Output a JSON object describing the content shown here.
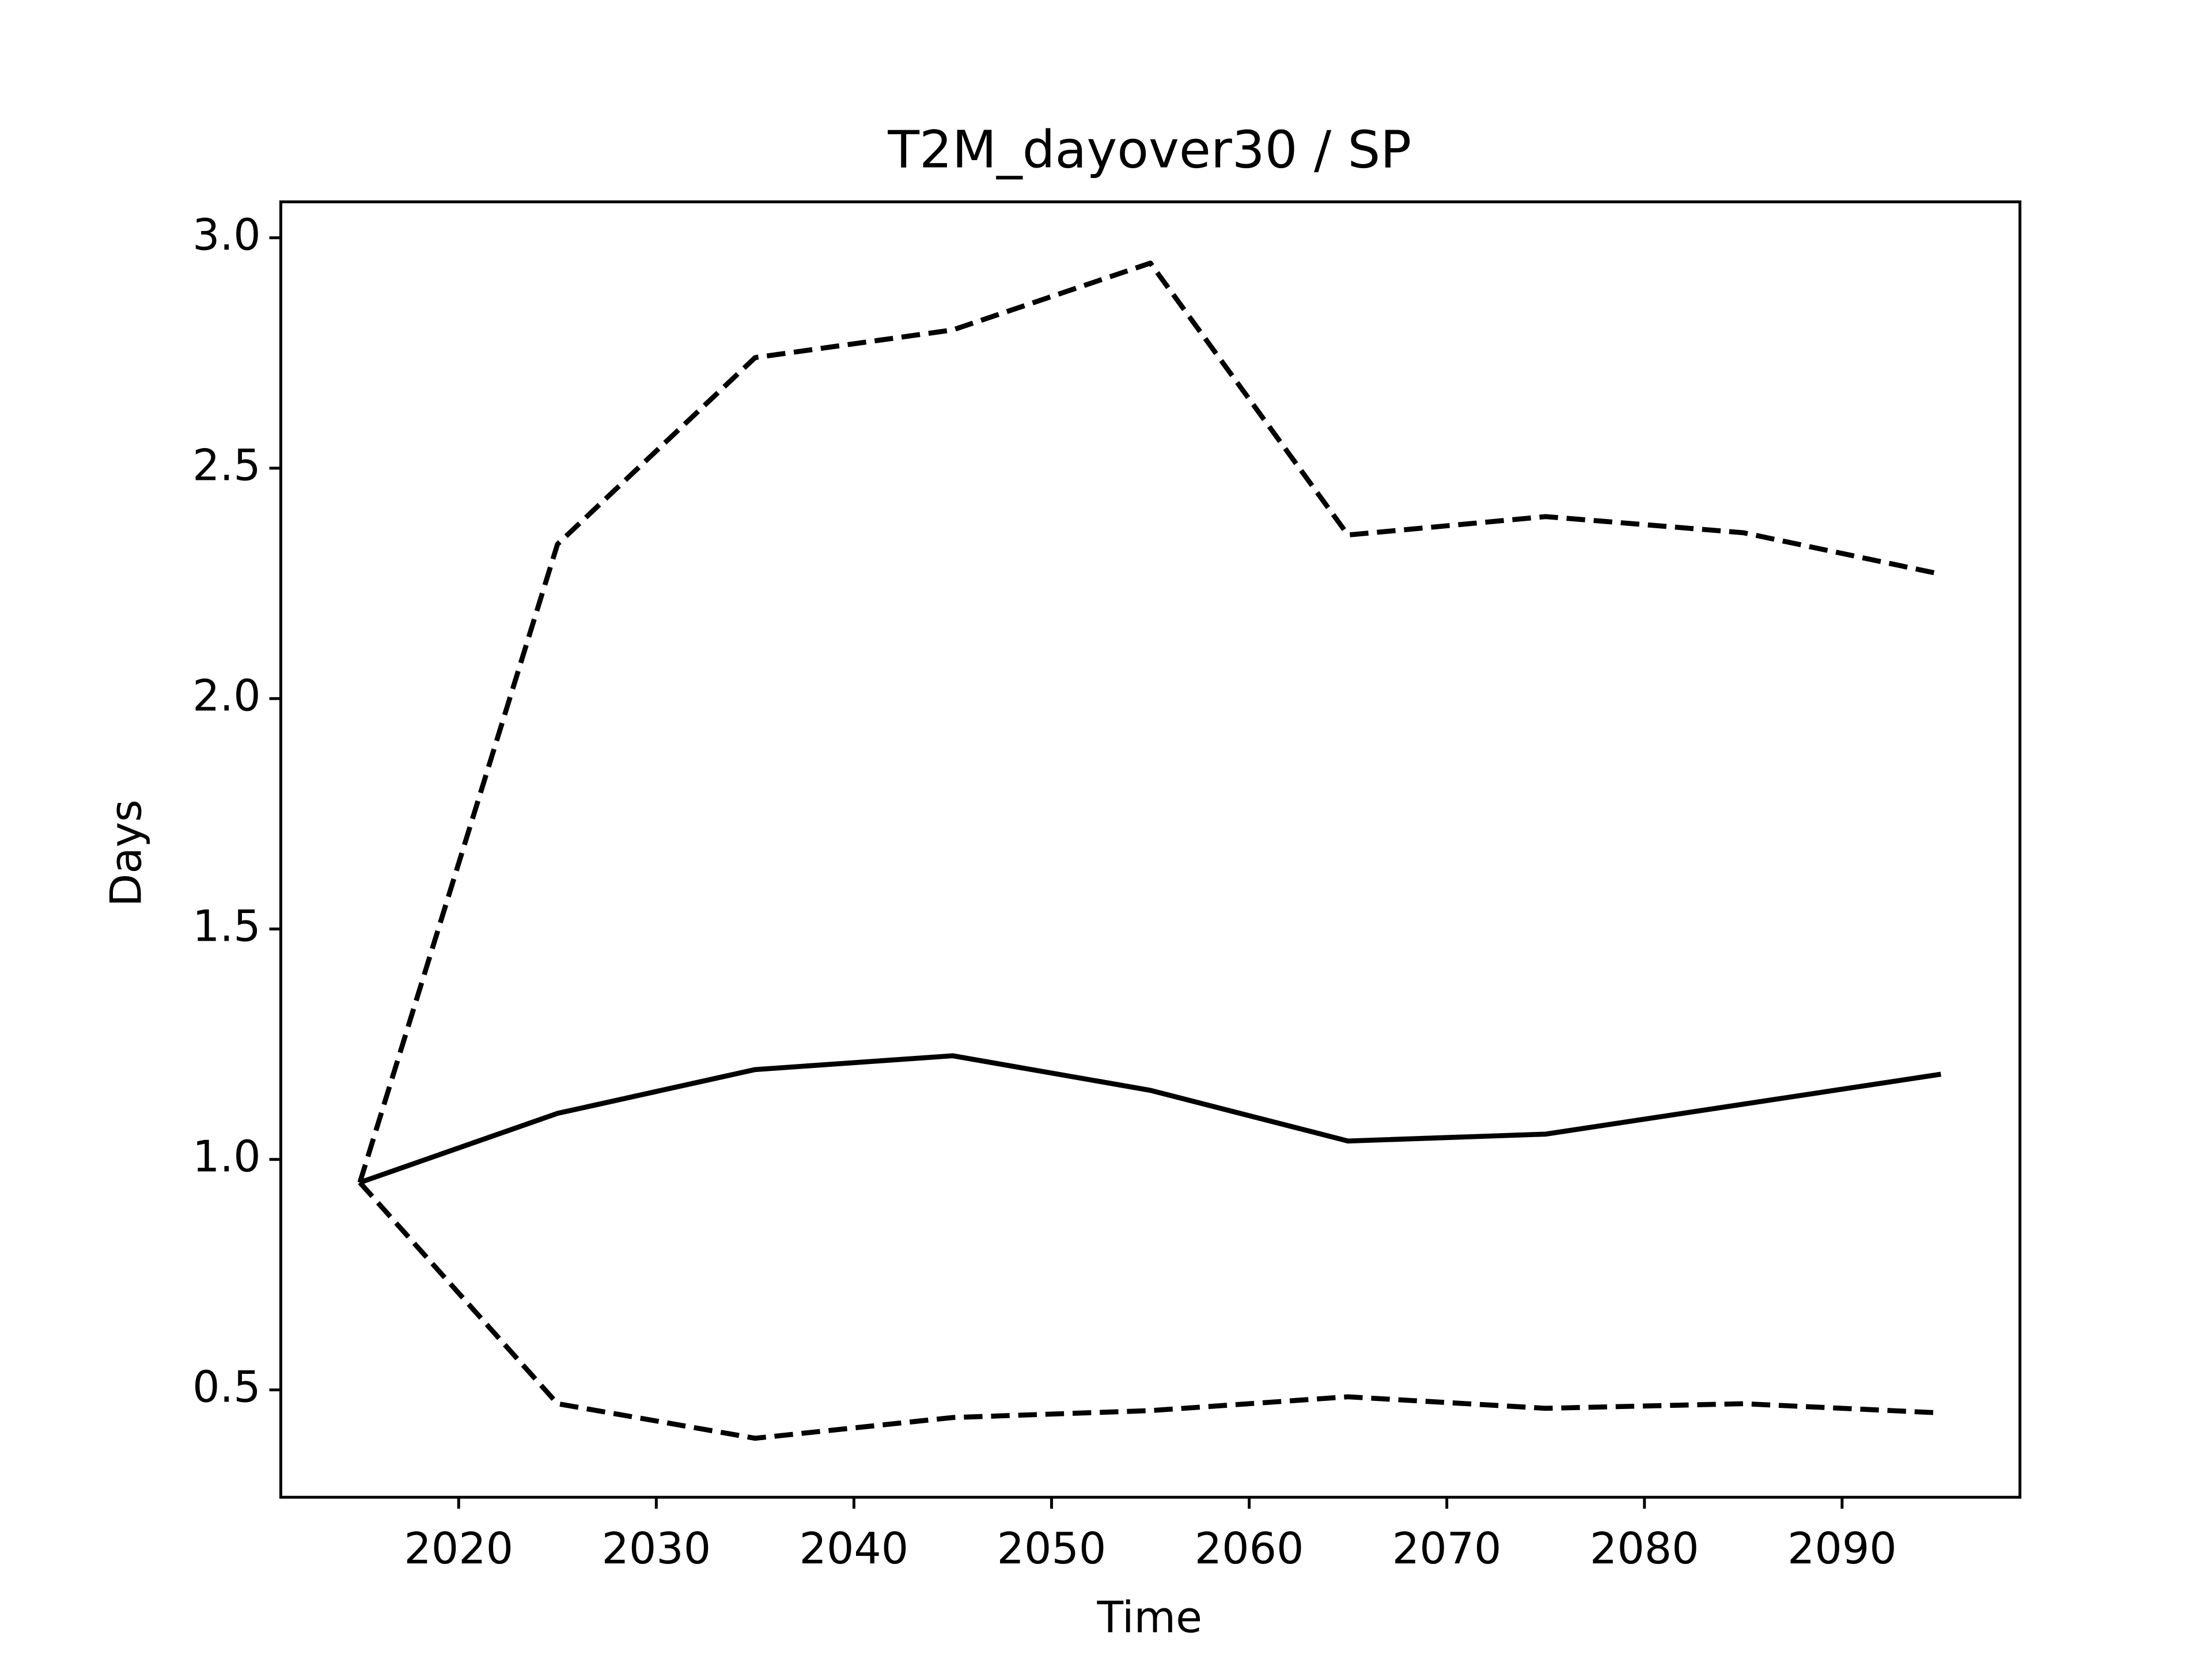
{
  "chart_data": {
    "type": "line",
    "title": "T2M_dayover30 / SP",
    "x_label": "Time",
    "y_label": "Days",
    "x": [
      2015,
      2025,
      2035,
      2045,
      2055,
      2065,
      2075,
      2085,
      2095
    ],
    "series": [
      {
        "color": "#000000",
        "linestyle": "solid",
        "values": [
          0.95,
          1.1,
          1.195,
          1.225,
          1.15,
          1.04,
          1.055,
          1.12,
          1.185
        ]
      },
      {
        "color": "#000000",
        "linestyle": "dashed",
        "values": [
          0.95,
          2.335,
          2.74,
          2.8,
          2.945,
          2.355,
          2.395,
          2.36,
          2.27
        ]
      },
      {
        "color": "#000000",
        "linestyle": "dashed",
        "values": [
          0.95,
          0.47,
          0.395,
          0.44,
          0.455,
          0.485,
          0.46,
          0.47,
          0.45
        ]
      }
    ],
    "xlim": [
      2011,
      2099
    ],
    "xticks": [
      2020,
      2030,
      2040,
      2050,
      2060,
      2070,
      2080,
      2090
    ],
    "ylim": [
      0.267,
      3.078
    ],
    "yticks": [
      {
        "value": 0.5,
        "label": "0.5"
      },
      {
        "value": 1,
        "label": "1.0"
      },
      {
        "value": 1.5,
        "label": "1.5"
      },
      {
        "value": 2,
        "label": "2.0"
      },
      {
        "value": 2.5,
        "label": "2.5"
      },
      {
        "value": 3,
        "label": "3.0"
      }
    ],
    "grid": false
  }
}
